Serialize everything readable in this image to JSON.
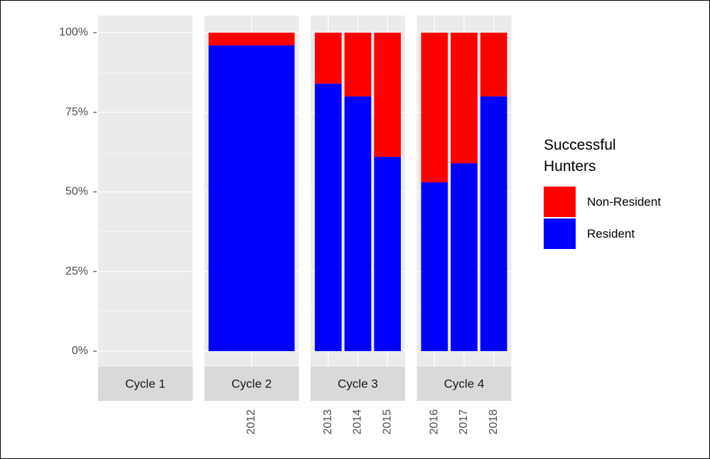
{
  "chart_data": {
    "type": "bar",
    "stacked": true,
    "ylim": [
      0,
      100
    ],
    "yticks": [
      {
        "value": 0,
        "label": "0%"
      },
      {
        "value": 25,
        "label": "25%"
      },
      {
        "value": 50,
        "label": "50%"
      },
      {
        "value": 75,
        "label": "75%"
      },
      {
        "value": 100,
        "label": "100%"
      }
    ],
    "grid": true,
    "legend": {
      "title": "Successful Hunters",
      "position": "right",
      "entries": [
        {
          "name": "Non-Resident",
          "color": "#ff0000"
        },
        {
          "name": "Resident",
          "color": "#0000ff"
        }
      ]
    },
    "facets": [
      {
        "label": "Cycle 1",
        "categories": [],
        "series": [
          {
            "values": []
          },
          {
            "values": []
          }
        ]
      },
      {
        "label": "Cycle 2",
        "categories": [
          "2012"
        ],
        "series": [
          {
            "values": [
              4
            ]
          },
          {
            "values": [
              96
            ]
          }
        ]
      },
      {
        "label": "Cycle 3",
        "categories": [
          "2013",
          "2014",
          "2015"
        ],
        "series": [
          {
            "values": [
              16,
              20,
              39
            ]
          },
          {
            "values": [
              84,
              80,
              61
            ]
          }
        ]
      },
      {
        "label": "Cycle 4",
        "categories": [
          "2016",
          "2017",
          "2018"
        ],
        "series": [
          {
            "values": [
              47,
              41,
              20
            ]
          },
          {
            "values": [
              53,
              59,
              80
            ]
          }
        ]
      }
    ]
  }
}
